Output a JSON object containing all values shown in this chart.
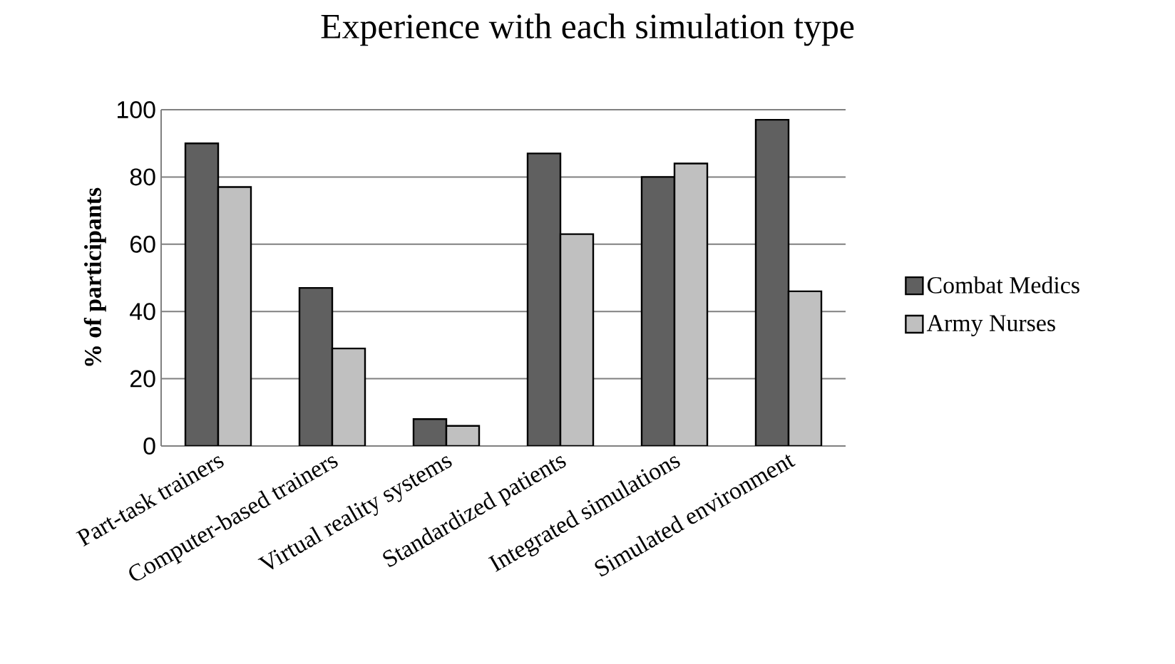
{
  "chart_data": {
    "type": "bar",
    "title": "Experience with each simulation type",
    "ylabel": "% of participants",
    "categories": [
      "Part-task trainers",
      "Computer-based trainers",
      "Virtual reality systems",
      "Standardized patients",
      "Integrated simulations",
      "Simulated environment"
    ],
    "series": [
      {
        "name": "Combat Medics",
        "color": "#606060",
        "values": [
          90,
          47,
          8,
          87,
          80,
          97
        ]
      },
      {
        "name": "Army Nurses",
        "color": "#c0c0c0",
        "values": [
          77,
          29,
          6,
          63,
          84,
          46
        ]
      }
    ],
    "ylim": [
      0,
      100
    ],
    "yticks": [
      0,
      20,
      40,
      60,
      80,
      100
    ],
    "grid": "y",
    "legend": "right"
  }
}
